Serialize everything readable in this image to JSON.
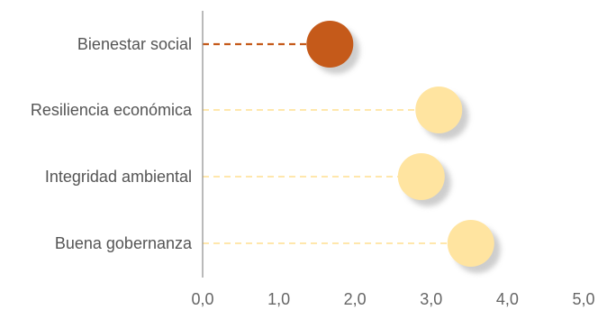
{
  "chart_data": {
    "type": "scatter",
    "subtype": "lollipop",
    "categories": [
      "Bienestar social",
      "Resiliencia económica",
      "Integridad ambiental",
      "Buena gobernanza"
    ],
    "values": [
      1.67,
      3.1,
      2.87,
      3.52
    ],
    "highlight_index": 0,
    "xlim": [
      0,
      5
    ],
    "x_ticks": [
      "0,0",
      "1,0",
      "2,0",
      "3,0",
      "4,0",
      "5,0"
    ],
    "grid": false,
    "legend": "none",
    "colors": {
      "highlight": "#c55a1a",
      "default": "#ffe4a0",
      "shadow": "#bdbdbd",
      "axis": "#8c8c8c",
      "text": "#555555"
    }
  }
}
